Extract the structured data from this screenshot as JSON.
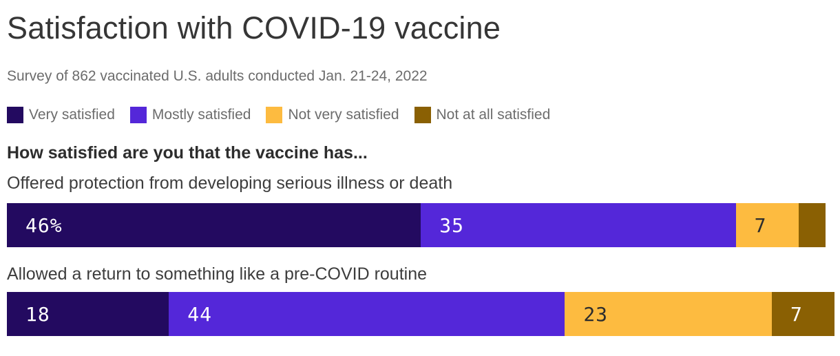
{
  "chart_data": {
    "type": "bar",
    "orientation": "horizontal-stacked",
    "title": "Satisfaction with COVID-19 vaccine",
    "subtitle": "Survey of 862 vaccinated U.S. adults conducted Jan. 21-24, 2022",
    "question": "How satisfied are you that the vaccine has...",
    "value_unit": "percent",
    "axis_range": [
      0,
      100
    ],
    "grid": false,
    "legend_position": "top",
    "colors": {
      "very_satisfied": "#230a60",
      "mostly_satisfied": "#5427d9",
      "not_very_satisfied": "#fdbb40",
      "not_at_all_satisfied": "#8a6003"
    },
    "legend": [
      {
        "label": "Very satisfied",
        "color_key": "very_satisfied"
      },
      {
        "label": "Mostly satisfied",
        "color_key": "mostly_satisfied"
      },
      {
        "label": "Not very satisfied",
        "color_key": "not_very_satisfied"
      },
      {
        "label": "Not at all satisfied",
        "color_key": "not_at_all_satisfied"
      }
    ],
    "rows": [
      {
        "label": "Offered protection from developing serious illness or death",
        "segments": [
          {
            "name": "Very satisfied",
            "value": 46,
            "display": "46%",
            "color_key": "very_satisfied",
            "text": "light"
          },
          {
            "name": "Mostly satisfied",
            "value": 35,
            "display": "35",
            "color_key": "mostly_satisfied",
            "text": "light"
          },
          {
            "name": "Not very satisfied",
            "value": 7,
            "display": "7",
            "color_key": "not_very_satisfied",
            "text": "dark"
          },
          {
            "name": "Not at all satisfied",
            "value": 3,
            "display": "",
            "color_key": "not_at_all_satisfied",
            "text": "light"
          }
        ]
      },
      {
        "label": "Allowed a return to something like a pre-COVID routine",
        "segments": [
          {
            "name": "Very satisfied",
            "value": 18,
            "display": "18",
            "color_key": "very_satisfied",
            "text": "light"
          },
          {
            "name": "Mostly satisfied",
            "value": 44,
            "display": "44",
            "color_key": "mostly_satisfied",
            "text": "light"
          },
          {
            "name": "Not very satisfied",
            "value": 23,
            "display": "23",
            "color_key": "not_very_satisfied",
            "text": "dark"
          },
          {
            "name": "Not at all satisfied",
            "value": 7,
            "display": "7",
            "color_key": "not_at_all_satisfied",
            "text": "light"
          }
        ]
      }
    ]
  }
}
